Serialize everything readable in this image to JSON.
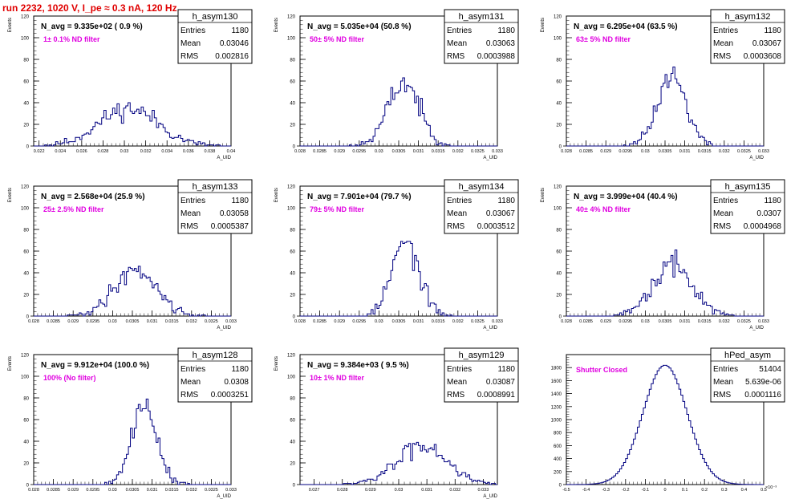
{
  "page_title": "run 2232,  1020 V, I_pe ≈ 0.3 nA, 120 Hz",
  "colors": {
    "line": "#000080",
    "annotation": "#e000e0",
    "title": "#e00000",
    "frame": "#000000"
  },
  "stats_labels": {
    "entries": "Entries",
    "mean": "Mean",
    "rms": "RMS"
  },
  "chart_data": [
    {
      "type": "bar",
      "id": "h_asym130",
      "stats_title": "h_asym130",
      "entries": "1180",
      "mean": "0.03046",
      "rms": "0.002816",
      "navg": "N_avg = 9.335e+02 ( 0.9 %)",
      "annotation": "1± 0.1% ND filter",
      "ylabel": "Events",
      "xlabel": "A_UID",
      "xlim": [
        0.0215,
        0.04
      ],
      "ylim": [
        0,
        120
      ],
      "xticks": [
        "0.022",
        "0.024",
        "0.026",
        "0.028",
        "0.03",
        "0.032",
        "0.034",
        "0.036",
        "0.038",
        "0.04"
      ],
      "yticks": [
        "20",
        "40",
        "60",
        "80",
        "100",
        "120"
      ],
      "dist": {
        "kind": "gauss",
        "mu": 0.0304,
        "sigma": 0.0028,
        "total": 1180,
        "bins": 90,
        "xmin": 0.0215,
        "xmax": 0.04,
        "seed": 11
      }
    },
    {
      "type": "bar",
      "id": "h_asym131",
      "stats_title": "h_asym131",
      "entries": "1180",
      "mean": "0.03063",
      "rms": "0.0003988",
      "navg": "N_avg = 5.035e+04 (50.8 %)",
      "annotation": "50± 5% ND filter",
      "ylabel": "Events",
      "xlabel": "A_UID",
      "xlim": [
        0.028,
        0.033
      ],
      "ylim": [
        0,
        120
      ],
      "xticks": [
        "0.028",
        "0.0285",
        "0.029",
        "0.0295",
        "0.03",
        "0.0305",
        "0.031",
        "0.0315",
        "0.032",
        "0.0325",
        "0.033"
      ],
      "yticks": [
        "20",
        "40",
        "60",
        "80",
        "100",
        "120"
      ],
      "dist": {
        "kind": "gauss",
        "mu": 0.03063,
        "sigma": 0.0004,
        "total": 1180,
        "bins": 100,
        "xmin": 0.028,
        "xmax": 0.033,
        "seed": 23
      }
    },
    {
      "type": "bar",
      "id": "h_asym132",
      "stats_title": "h_asym132",
      "entries": "1180",
      "mean": "0.03067",
      "rms": "0.0003608",
      "navg": "N_avg = 6.295e+04 (63.5 %)",
      "annotation": "63± 5% ND filter",
      "ylabel": "Events",
      "xlabel": "A_UID",
      "xlim": [
        0.028,
        0.033
      ],
      "ylim": [
        0,
        120
      ],
      "xticks": [
        "0.028",
        "0.0285",
        "0.029",
        "0.0295",
        "0.03",
        "0.0305",
        "0.031",
        "0.0315",
        "0.032",
        "0.0325",
        "0.033"
      ],
      "yticks": [
        "20",
        "40",
        "60",
        "80",
        "100",
        "120"
      ],
      "dist": {
        "kind": "gauss",
        "mu": 0.03067,
        "sigma": 0.00036,
        "total": 1180,
        "bins": 100,
        "xmin": 0.028,
        "xmax": 0.033,
        "seed": 37
      }
    },
    {
      "type": "bar",
      "id": "h_asym133",
      "stats_title": "h_asym133",
      "entries": "1180",
      "mean": "0.03058",
      "rms": "0.0005387",
      "navg": "N_avg = 2.568e+04 (25.9 %)",
      "annotation": "25± 2.5% ND filter",
      "ylabel": "Events",
      "xlabel": "A_UID",
      "xlim": [
        0.028,
        0.033
      ],
      "ylim": [
        0,
        120
      ],
      "xticks": [
        "0.028",
        "0.0285",
        "0.029",
        "0.0295",
        "0.03",
        "0.0305",
        "0.031",
        "0.0315",
        "0.032",
        "0.0325",
        "0.033"
      ],
      "yticks": [
        "20",
        "40",
        "60",
        "80",
        "100",
        "120"
      ],
      "dist": {
        "kind": "gauss",
        "mu": 0.03058,
        "sigma": 0.00054,
        "total": 1180,
        "bins": 100,
        "xmin": 0.028,
        "xmax": 0.033,
        "seed": 41
      }
    },
    {
      "type": "bar",
      "id": "h_asym134",
      "stats_title": "h_asym134",
      "entries": "1180",
      "mean": "0.03067",
      "rms": "0.0003512",
      "navg": "N_avg = 7.901e+04 (79.7 %)",
      "annotation": "79± 5% ND filter",
      "ylabel": "Events",
      "xlabel": "A_UID",
      "xlim": [
        0.028,
        0.033
      ],
      "ylim": [
        0,
        120
      ],
      "xticks": [
        "0.028",
        "0.0285",
        "0.029",
        "0.0295",
        "0.03",
        "0.0305",
        "0.031",
        "0.0315",
        "0.032",
        "0.0325",
        "0.033"
      ],
      "yticks": [
        "20",
        "40",
        "60",
        "80",
        "100",
        "120"
      ],
      "dist": {
        "kind": "gauss",
        "mu": 0.03067,
        "sigma": 0.00035,
        "total": 1180,
        "bins": 100,
        "xmin": 0.028,
        "xmax": 0.033,
        "seed": 53
      }
    },
    {
      "type": "bar",
      "id": "h_asym135",
      "stats_title": "h_asym135",
      "entries": "1180",
      "mean": "0.0307",
      "rms": "0.0004968",
      "navg": "N_avg = 3.999e+04 (40.4 %)",
      "annotation": "40± 4% ND filter",
      "ylabel": "Events",
      "xlabel": "A_UID",
      "xlim": [
        0.028,
        0.033
      ],
      "ylim": [
        0,
        120
      ],
      "xticks": [
        "0.028",
        "0.0285",
        "0.029",
        "0.0295",
        "0.03",
        "0.0305",
        "0.031",
        "0.0315",
        "0.032",
        "0.0325",
        "0.033"
      ],
      "yticks": [
        "20",
        "40",
        "60",
        "80",
        "100",
        "120"
      ],
      "dist": {
        "kind": "gauss",
        "mu": 0.0307,
        "sigma": 0.0005,
        "total": 1180,
        "bins": 100,
        "xmin": 0.028,
        "xmax": 0.033,
        "seed": 67
      }
    },
    {
      "type": "bar",
      "id": "h_asym128",
      "stats_title": "h_asym128",
      "entries": "1180",
      "mean": "0.0308",
      "rms": "0.0003251",
      "navg": "N_avg = 9.912e+04 (100.0 %)",
      "annotation": "100% (No filter)",
      "ylabel": "Events",
      "xlabel": "A_UID",
      "xlim": [
        0.028,
        0.033
      ],
      "ylim": [
        0,
        120
      ],
      "xticks": [
        "0.028",
        "0.0285",
        "0.029",
        "0.0295",
        "0.03",
        "0.0305",
        "0.031",
        "0.0315",
        "0.032",
        "0.0325",
        "0.033"
      ],
      "yticks": [
        "20",
        "40",
        "60",
        "80",
        "100",
        "120"
      ],
      "dist": {
        "kind": "gauss",
        "mu": 0.0308,
        "sigma": 0.00033,
        "total": 1180,
        "bins": 100,
        "xmin": 0.028,
        "xmax": 0.033,
        "seed": 79
      }
    },
    {
      "type": "bar",
      "id": "h_asym129",
      "stats_title": "h_asym129",
      "entries": "1180",
      "mean": "0.03087",
      "rms": "0.0008991",
      "navg": "N_avg = 9.384e+03 ( 9.5 %)",
      "annotation": "10± 1% ND filter",
      "ylabel": "Events",
      "xlabel": "A_UID",
      "xlim": [
        0.0265,
        0.0335
      ],
      "ylim": [
        0,
        120
      ],
      "xticks": [
        "0.027",
        "0.028",
        "0.029",
        "0.03",
        "0.031",
        "0.032",
        "0.033"
      ],
      "yticks": [
        "20",
        "40",
        "60",
        "80",
        "100",
        "120"
      ],
      "dist": {
        "kind": "gauss",
        "mu": 0.03087,
        "sigma": 0.0009,
        "total": 1180,
        "bins": 100,
        "xmin": 0.0265,
        "xmax": 0.0335,
        "seed": 83
      }
    },
    {
      "type": "bar",
      "id": "hPed_asym",
      "stats_title": "hPed_asym",
      "entries": "51404",
      "mean": "5.639e-06",
      "rms": "0.0001116",
      "navg": "",
      "annotation": "Shutter Closed",
      "ylabel": "",
      "xlabel": "",
      "xlim": [
        -0.5,
        0.5
      ],
      "ylim": [
        0,
        2000
      ],
      "xscale_label": "×10⁻³",
      "xticks": [
        "-0.5",
        "-0.4",
        "-0.3",
        "-0.2",
        "-0.1",
        "0",
        "0.1",
        "0.2",
        "0.3",
        "0.4",
        "0.5"
      ],
      "yticks": [
        "200",
        "400",
        "600",
        "800",
        "1000",
        "1200",
        "1400",
        "1600",
        "1800"
      ],
      "dist": {
        "kind": "gauss",
        "mu": 0.0,
        "sigma": 0.1116,
        "total": 51404,
        "bins": 100,
        "xmin": -0.5,
        "xmax": 0.5,
        "seed": 97,
        "noise": 0.02
      }
    }
  ]
}
